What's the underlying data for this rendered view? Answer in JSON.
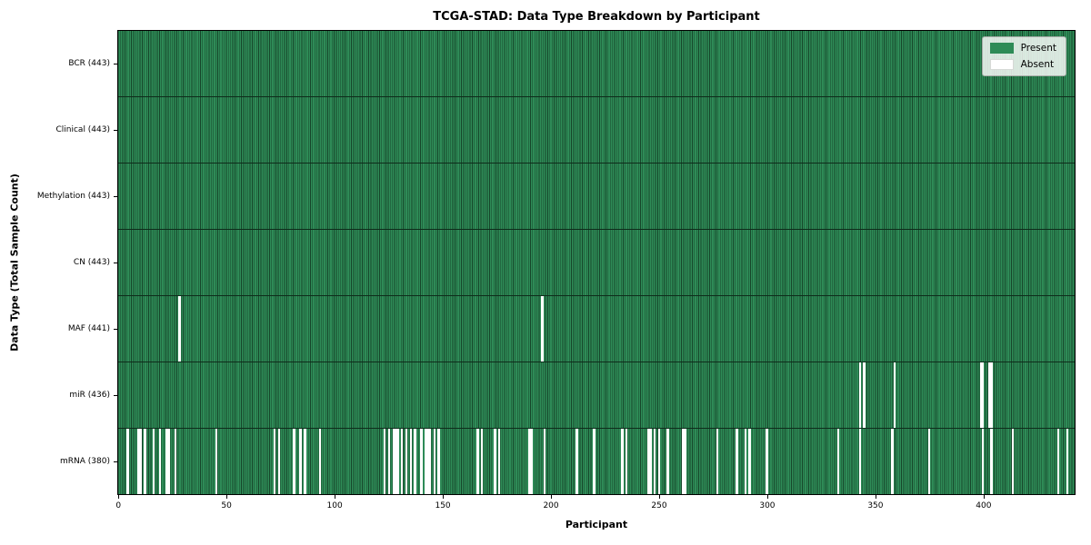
{
  "figure": {
    "title": "TCGA-STAD: Data Type Breakdown by Participant",
    "xlabel": "Participant",
    "ylabel": "Data Type (Total Sample Count)"
  },
  "legend": {
    "present_label": "Present",
    "absent_label": "Absent"
  },
  "colors": {
    "present_fill": "#2e8b57",
    "present_edge": "#16462a",
    "absent_fill": "#ffffff",
    "row_divider": "#0e2c1b",
    "axis": "#000000"
  },
  "chart_data": {
    "type": "heatmap",
    "title": "TCGA-STAD: Data Type Breakdown by Participant",
    "xlabel": "Participant",
    "ylabel": "Data Type (Total Sample Count)",
    "n_participants": 443,
    "x_ticks": [
      0,
      50,
      100,
      150,
      200,
      250,
      300,
      350,
      400
    ],
    "x_range": [
      -0.5,
      442.5
    ],
    "grid": false,
    "legend_position": "upper right",
    "legend_entries": [
      "Present",
      "Absent"
    ],
    "cell_values": "binary: 1 = present (green), 0 = absent (white)",
    "rows": [
      {
        "label": "BCR (443)",
        "data_type": "BCR",
        "present_count": 443,
        "absent_participants": []
      },
      {
        "label": "Clinical (443)",
        "data_type": "Clinical",
        "present_count": 443,
        "absent_participants": []
      },
      {
        "label": "Methylation (443)",
        "data_type": "Methylation",
        "present_count": 443,
        "absent_participants": []
      },
      {
        "label": "CN (443)",
        "data_type": "CN",
        "present_count": 443,
        "absent_participants": []
      },
      {
        "label": "MAF (441)",
        "data_type": "MAF",
        "present_count": 441,
        "absent_participants": [
          28,
          196
        ]
      },
      {
        "label": "miR (436)",
        "data_type": "miR",
        "present_count": 436,
        "absent_participants": [
          343,
          345,
          359,
          399,
          400,
          403,
          404
        ]
      },
      {
        "label": "mRNA (380)",
        "data_type": "mRNA",
        "present_count": 380,
        "absent_participants": [
          4,
          9,
          10,
          12,
          16,
          19,
          22,
          23,
          26,
          45,
          72,
          74,
          81,
          84,
          86,
          93,
          123,
          125,
          127,
          128,
          129,
          131,
          133,
          135,
          137,
          140,
          142,
          143,
          144,
          146,
          148,
          166,
          168,
          174,
          176,
          190,
          191,
          197,
          212,
          220,
          233,
          235,
          245,
          246,
          248,
          250,
          254,
          261,
          262,
          277,
          286,
          290,
          292,
          300,
          333,
          343,
          358,
          375,
          400,
          404,
          414,
          435,
          439
        ]
      }
    ]
  }
}
